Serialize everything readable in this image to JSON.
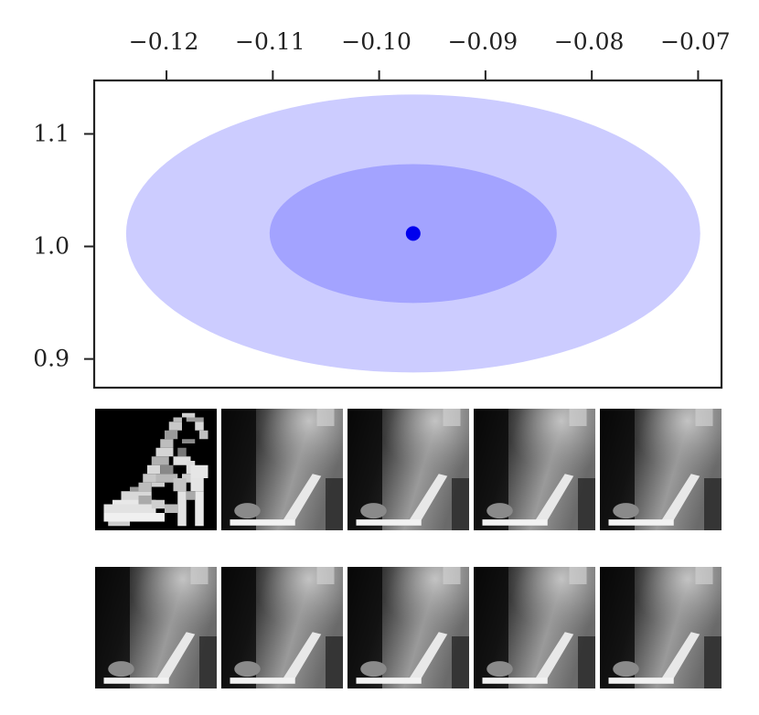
{
  "chart_data": {
    "type": "scatter",
    "title": "",
    "xlabel": "",
    "ylabel": "",
    "x_axis_position": "top",
    "xlim": [
      -0.1268,
      -0.0678
    ],
    "ylim": [
      0.8745,
      1.1475
    ],
    "x_ticks": [
      -0.12,
      -0.11,
      -0.1,
      -0.09,
      -0.08,
      -0.07
    ],
    "x_tick_labels": [
      "−0.12",
      "−0.11",
      "−0.10",
      "−0.09",
      "−0.08",
      "−0.07"
    ],
    "y_ticks": [
      0.9,
      1.0,
      1.1
    ],
    "y_tick_labels": [
      "0.9",
      "1.0",
      "1.1"
    ],
    "grid": false,
    "point": {
      "x": -0.0968,
      "y": 1.0115,
      "color": "#0000ee"
    },
    "ellipses": [
      {
        "cx": -0.0968,
        "cy": 1.0115,
        "rx": 0.027,
        "ry": 0.1235,
        "color": "#ccccff"
      },
      {
        "cx": -0.0968,
        "cy": 1.0115,
        "rx": 0.0135,
        "ry": 0.0617,
        "color": "#a3a3ff"
      }
    ],
    "thumbnail_rows": [
      [
        "original-sandal",
        "heel-recon",
        "heel-recon",
        "heel-recon",
        "heel-recon"
      ],
      [
        "heel-recon",
        "heel-recon",
        "heel-recon",
        "heel-recon",
        "heel-recon"
      ]
    ]
  }
}
